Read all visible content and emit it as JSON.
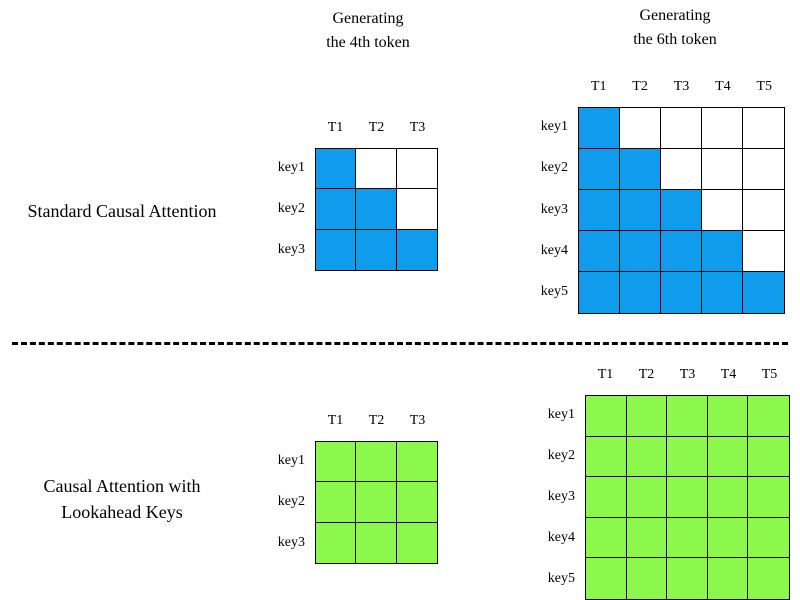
{
  "titles": {
    "gen4_line1": "Generating",
    "gen4_line2": "the 4th token",
    "gen6_line1": "Generating",
    "gen6_line2": "the 6th token"
  },
  "rows": {
    "standard": "Standard Causal Attention",
    "lookahead_line1": "Causal Attention with",
    "lookahead_line2": "Lookahead Keys"
  },
  "colors": {
    "standard_fill": "#0f9cec",
    "lookahead_fill": "#8cf84c",
    "empty_fill": "#ffffff"
  },
  "matrices": [
    {
      "id": "standard-3",
      "columns": [
        "T1",
        "T2",
        "T3"
      ],
      "rows": [
        "key1",
        "key2",
        "key3"
      ],
      "mask": "causal",
      "fill": "standard_fill"
    },
    {
      "id": "standard-5",
      "columns": [
        "T1",
        "T2",
        "T3",
        "T4",
        "T5"
      ],
      "rows": [
        "key1",
        "key2",
        "key3",
        "key4",
        "key5"
      ],
      "mask": "causal",
      "fill": "standard_fill"
    },
    {
      "id": "lookahead-3",
      "columns": [
        "T1",
        "T2",
        "T3"
      ],
      "rows": [
        "key1",
        "key2",
        "key3"
      ],
      "mask": "full",
      "fill": "lookahead_fill"
    },
    {
      "id": "lookahead-5",
      "columns": [
        "T1",
        "T2",
        "T3",
        "T4",
        "T5"
      ],
      "rows": [
        "key1",
        "key2",
        "key3",
        "key4",
        "key5"
      ],
      "mask": "full",
      "fill": "lookahead_fill"
    }
  ]
}
